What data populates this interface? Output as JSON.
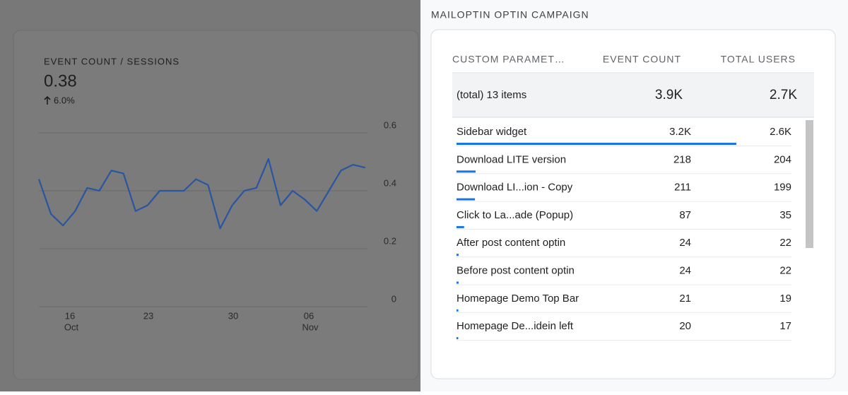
{
  "left_card": {
    "title": "EVENT COUNT / SESSIONS",
    "value": "0.38",
    "change": "6.0%",
    "chart_data": {
      "type": "line",
      "color": "#2a56a0",
      "values": [
        0.44,
        0.32,
        0.28,
        0.33,
        0.41,
        0.4,
        0.47,
        0.46,
        0.33,
        0.35,
        0.4,
        0.4,
        0.4,
        0.44,
        0.42,
        0.27,
        0.35,
        0.4,
        0.41,
        0.51,
        0.35,
        0.4,
        0.37,
        0.33,
        0.4,
        0.47,
        0.49,
        0.48
      ],
      "ylim": [
        0,
        0.6
      ],
      "yticks": [
        0,
        0.2,
        0.4,
        0.6
      ],
      "grid": true,
      "x_labels": [
        {
          "day": "16",
          "month": "Oct"
        },
        {
          "day": "23"
        },
        {
          "day": "30"
        },
        {
          "day": "06",
          "month": "Nov"
        }
      ]
    }
  },
  "panel": {
    "title": "MAILOPTIN OPTIN CAMPAIGN",
    "table": {
      "columns": [
        "CUSTOM PARAMET…",
        "EVENT COUNT",
        "TOTAL USERS"
      ],
      "total": {
        "label": "(total) 13 items",
        "event_count": "3.9K",
        "total_users": "2.7K"
      },
      "rows": [
        {
          "name": "Sidebar widget",
          "event_count": 3200,
          "event_count_label": "3.2K",
          "total_users": "2.6K"
        },
        {
          "name": "Download LITE version",
          "event_count": 218,
          "total_users": 204
        },
        {
          "name": "Download LI...ion - Copy",
          "event_count": 211,
          "total_users": 199
        },
        {
          "name": "Click to La...ade (Popup)",
          "event_count": 87,
          "total_users": 35
        },
        {
          "name": "After post content optin",
          "event_count": 24,
          "total_users": 22
        },
        {
          "name": "Before post content optin",
          "event_count": 24,
          "total_users": 22
        },
        {
          "name": "Homepage Demo Top Bar",
          "event_count": 21,
          "total_users": 19
        },
        {
          "name": "Homepage De...idein left",
          "event_count": 20,
          "total_users": 17
        }
      ]
    }
  }
}
